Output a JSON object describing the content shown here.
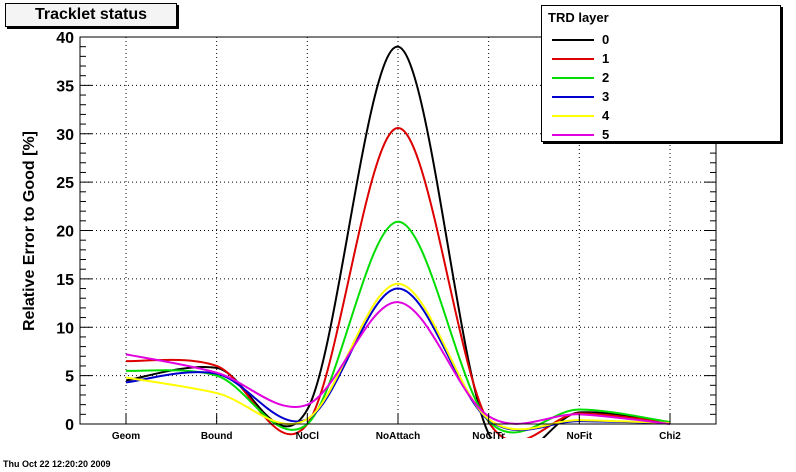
{
  "title": "Tracklet status",
  "legend": {
    "header": "TRD layer",
    "items": [
      {
        "label": "0",
        "color": "#000000"
      },
      {
        "label": "1",
        "color": "#dd0000"
      },
      {
        "label": "2",
        "color": "#00dd00"
      },
      {
        "label": "3",
        "color": "#0000cc"
      },
      {
        "label": "4",
        "color": "#ffff00"
      },
      {
        "label": "5",
        "color": "#e000e0"
      }
    ]
  },
  "timestamp": "Thu Oct 22 12:20:20 2009",
  "chart_data": {
    "type": "line",
    "title": "Tracklet status",
    "xlabel": "",
    "ylabel": "Relative Error to Good [%]",
    "categories": [
      "Geom",
      "Bound",
      "NoCl",
      "NoAttach",
      "NoClTr",
      "NoFit",
      "Chi2"
    ],
    "ylim": [
      0,
      40
    ],
    "yticks": [
      0,
      5,
      10,
      15,
      20,
      25,
      30,
      35,
      40
    ],
    "grid": true,
    "legend_position": "top-right",
    "series": [
      {
        "name": "0",
        "color": "#000000",
        "values": [
          4.5,
          5.8,
          1.5,
          39.0,
          -1.0,
          1.2,
          0.1
        ]
      },
      {
        "name": "1",
        "color": "#dd0000",
        "values": [
          6.5,
          6.0,
          0.0,
          30.6,
          0.2,
          1.1,
          0.1
        ]
      },
      {
        "name": "2",
        "color": "#00dd00",
        "values": [
          5.5,
          5.0,
          0.0,
          20.9,
          0.3,
          1.5,
          0.2
        ]
      },
      {
        "name": "3",
        "color": "#0000cc",
        "values": [
          4.3,
          5.2,
          0.5,
          14.0,
          0.4,
          0.3,
          0.1
        ]
      },
      {
        "name": "4",
        "color": "#ffff00",
        "values": [
          4.8,
          3.2,
          0.5,
          14.5,
          0.5,
          0.4,
          0.1
        ]
      },
      {
        "name": "5",
        "color": "#e000e0",
        "values": [
          7.2,
          5.3,
          2.0,
          12.6,
          0.8,
          1.0,
          0.0
        ]
      }
    ]
  }
}
